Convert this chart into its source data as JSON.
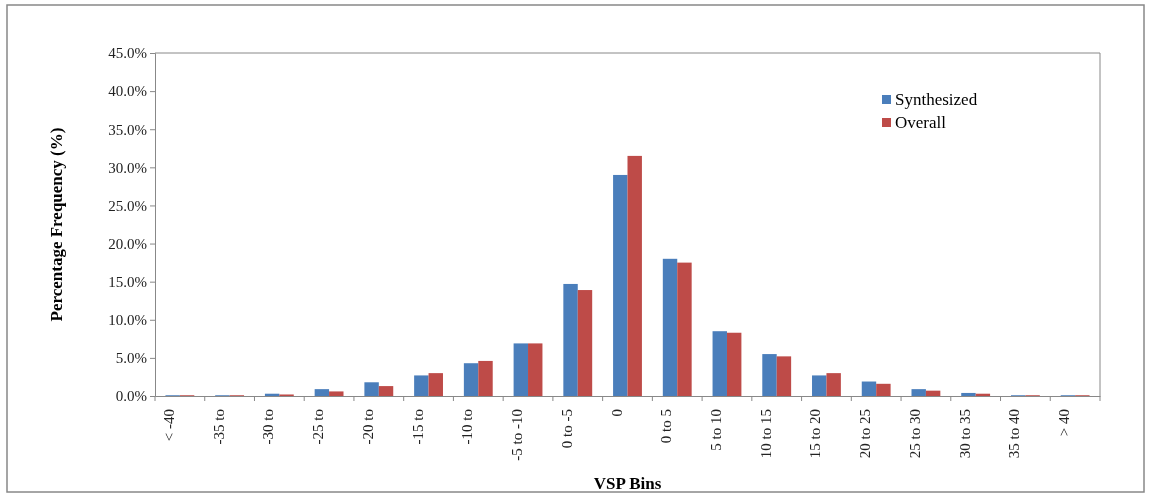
{
  "chart_data": {
    "type": "bar",
    "xlabel": "VSP Bins",
    "ylabel": "Percentage Frequency (%)",
    "categories": [
      "< -40",
      "-35 to",
      "-30 to",
      "-25 to",
      "-20 to",
      "-15 to",
      "-10 to",
      "-5 to -10",
      "0 to -5",
      "0",
      "0 to 5",
      "5 to 10",
      "10 to 15",
      "15 to 20",
      "20 to 25",
      "25 to 30",
      "30 to 35",
      "35 to 40",
      "> 40"
    ],
    "series": [
      {
        "name": "Synthesized",
        "color": "#4a7ebb",
        "values": [
          0.1,
          0.1,
          0.3,
          0.9,
          1.8,
          2.7,
          4.3,
          6.9,
          14.7,
          29.0,
          18.0,
          8.5,
          5.5,
          2.7,
          1.9,
          0.9,
          0.4,
          0.1,
          0.1
        ]
      },
      {
        "name": "Overall",
        "color": "#be4b48",
        "values": [
          0.1,
          0.1,
          0.2,
          0.6,
          1.3,
          3.0,
          4.6,
          6.9,
          13.9,
          31.5,
          17.5,
          8.3,
          5.2,
          3.0,
          1.6,
          0.7,
          0.3,
          0.1,
          0.1
        ]
      }
    ],
    "ylim": [
      0,
      45
    ],
    "yticks": [
      {
        "value": 0,
        "label": "0.0%"
      },
      {
        "value": 5,
        "label": "5.0%"
      },
      {
        "value": 10,
        "label": "10.0%"
      },
      {
        "value": 15,
        "label": "15.0%"
      },
      {
        "value": 20,
        "label": "20.0%"
      },
      {
        "value": 25,
        "label": "25.0%"
      },
      {
        "value": 30,
        "label": "30.0%"
      },
      {
        "value": 35,
        "label": "35.0%"
      },
      {
        "value": 40,
        "label": "40.0%"
      },
      {
        "value": 45,
        "label": "45.0%"
      }
    ],
    "grid": false,
    "legend": "top right"
  }
}
